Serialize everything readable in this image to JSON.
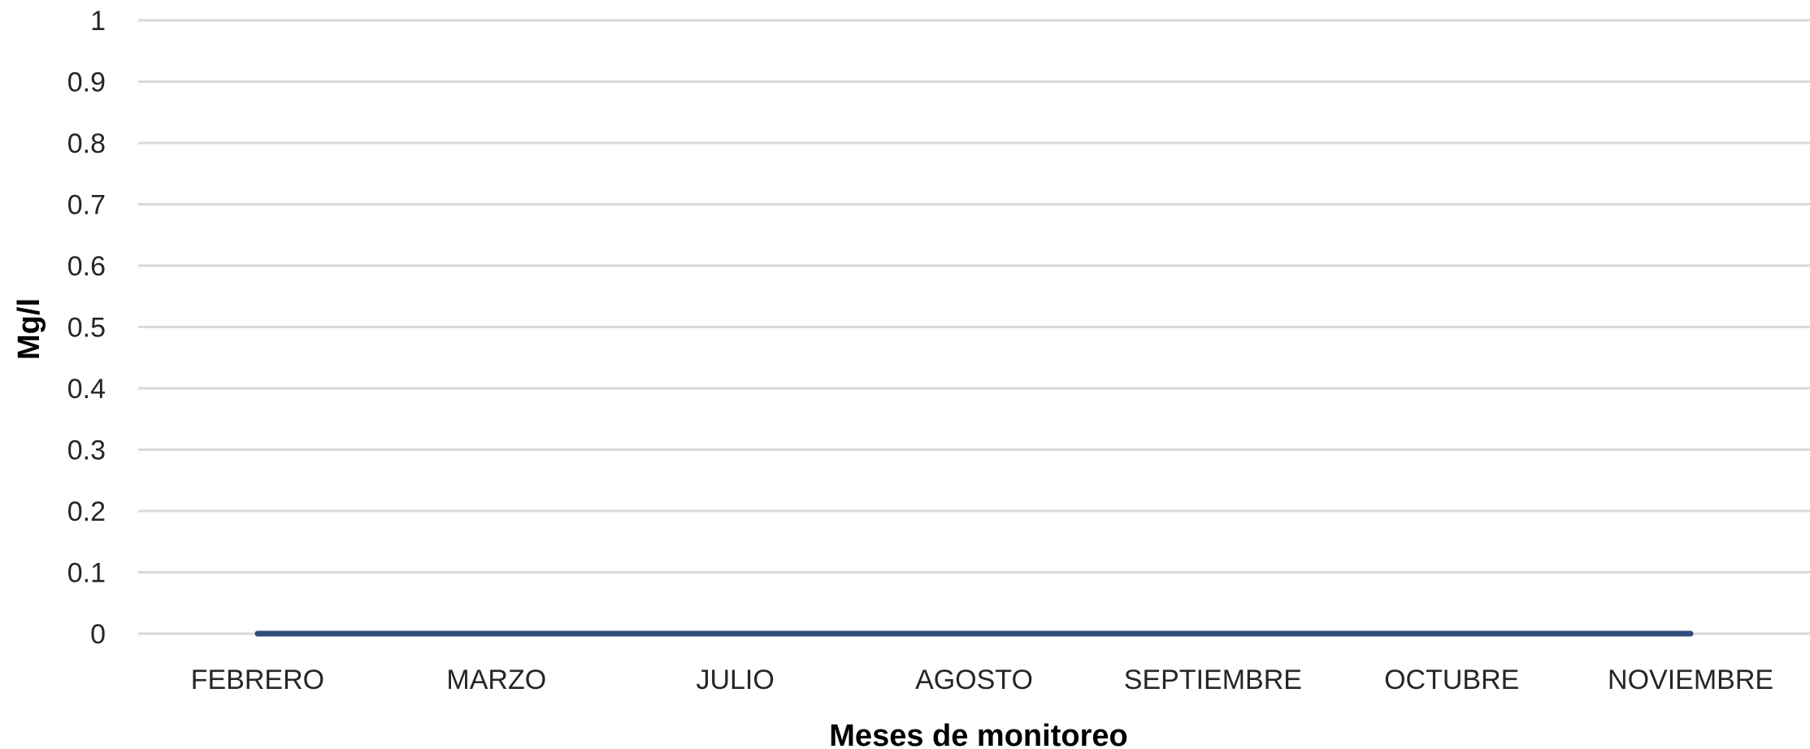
{
  "chart_data": {
    "type": "line",
    "categories": [
      "FEBRERO",
      "MARZO",
      "JULIO",
      "AGOSTO",
      "SEPTIEMBRE",
      "OCTUBRE",
      "NOVIEMBRE"
    ],
    "series": [
      {
        "values": [
          0,
          0,
          0,
          0,
          0,
          0,
          0
        ]
      }
    ],
    "yticks": [
      "0",
      "0.1",
      "0.2",
      "0.3",
      "0.4",
      "0.5",
      "0.6",
      "0.7",
      "0.8",
      "0.9",
      "1"
    ],
    "ylim": [
      0,
      1
    ],
    "xlabel": "Meses de monitoreo",
    "ylabel": "Mg/l",
    "grid": true,
    "legend": "none",
    "colors": {
      "series": "#2f4b7c",
      "grid": "#d9d9d9"
    }
  }
}
